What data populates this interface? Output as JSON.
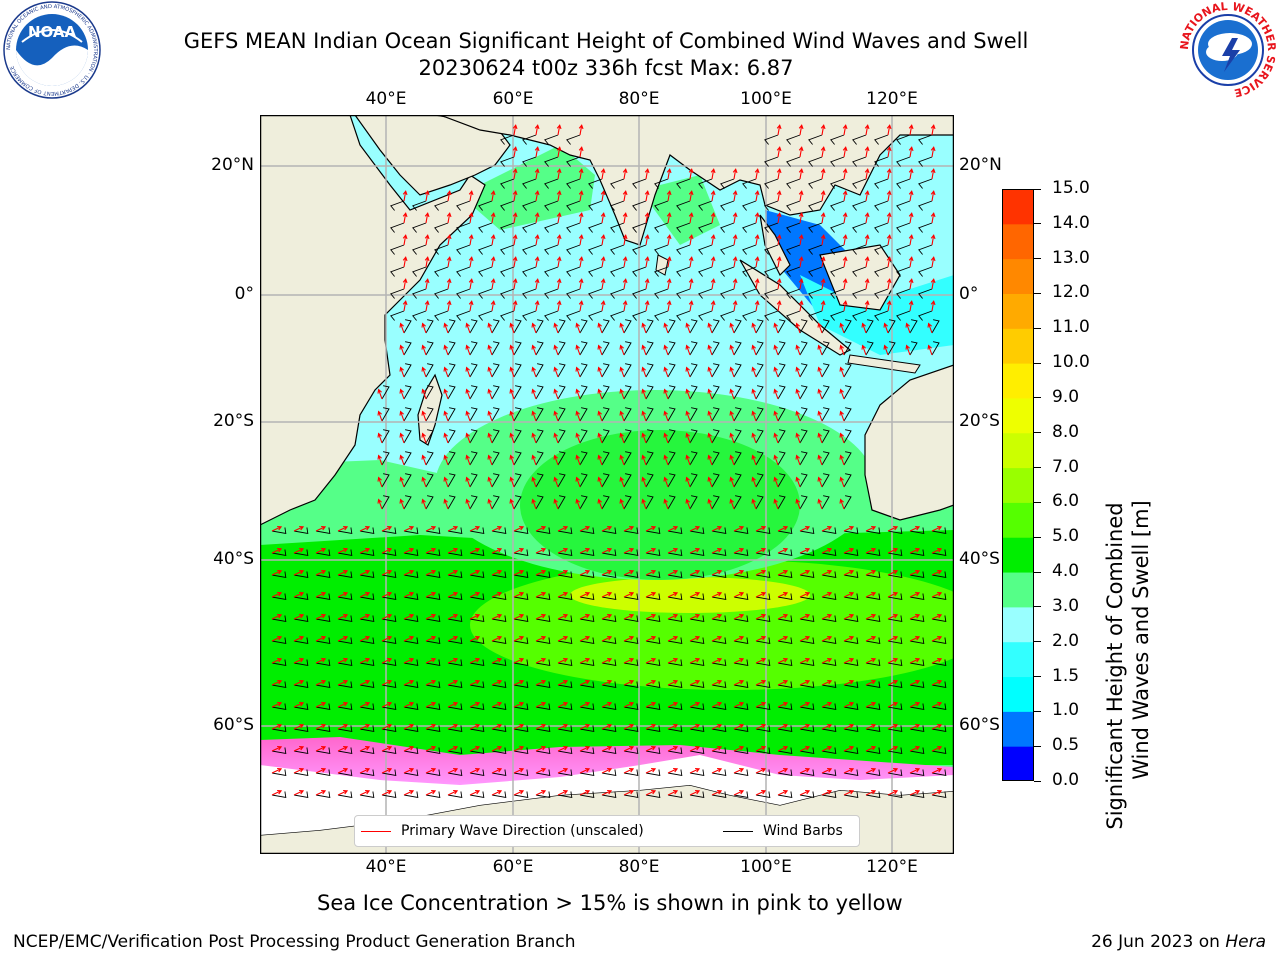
{
  "header": {
    "title_line1": "GEFS MEAN Indian Ocean Significant Height of Combined Wind Waves and Swell",
    "title_line2": "20230624 t00z 336h fcst   Max: 6.87"
  },
  "logos": {
    "noaa_text": "NOAA",
    "noaa_ring_text": "NATIONAL OCEANIC AND ATMOSPHERIC ADMINISTRATION · U.S. DEPARTMENT OF COMMERCE",
    "nws_ring_text": "NATIONAL WEATHER SERVICE"
  },
  "map": {
    "lon_labels": [
      "40°E",
      "60°E",
      "80°E",
      "100°E",
      "120°E"
    ],
    "lat_labels": [
      "20°N",
      "0°",
      "20°S",
      "40°S",
      "60°S"
    ],
    "colors": {
      "land": "#efeedc",
      "grid": "#b4b4b4",
      "wind_barb": "#000000",
      "wave_arrow": "#ff0000",
      "ice_pink": "#ff66cc",
      "ice_orange": "#ffb060"
    }
  },
  "legend": {
    "wave_label": "Primary Wave Direction (unscaled)",
    "wind_label": "Wind Barbs"
  },
  "colorbar": {
    "ticks": [
      "15.0",
      "14.0",
      "13.0",
      "12.0",
      "11.0",
      "10.0",
      "9.0",
      "8.0",
      "7.0",
      "6.0",
      "5.0",
      "4.0",
      "3.0",
      "2.0",
      "1.5",
      "1.0",
      "0.5",
      "0.0"
    ],
    "label_line1": "Significant Height of Combined",
    "label_line2": "Wind Waves and Swell [m]",
    "colors": [
      "#0000ff",
      "#0077ff",
      "#00ffff",
      "#33ffff",
      "#99ffff",
      "#55ff88",
      "#00ee00",
      "#55ff00",
      "#99ff00",
      "#ccff00",
      "#eeff00",
      "#ffee00",
      "#ffcc00",
      "#ffaa00",
      "#ff8800",
      "#ff6600",
      "#ff3300"
    ]
  },
  "caption": "Sea Ice Concentration > 15% is shown in pink to yellow",
  "footer": {
    "left": "NCEP/EMC/Verification Post Processing Product Generation Branch",
    "right_date": "26 Jun 2023 on ",
    "right_machine": "Hera"
  }
}
